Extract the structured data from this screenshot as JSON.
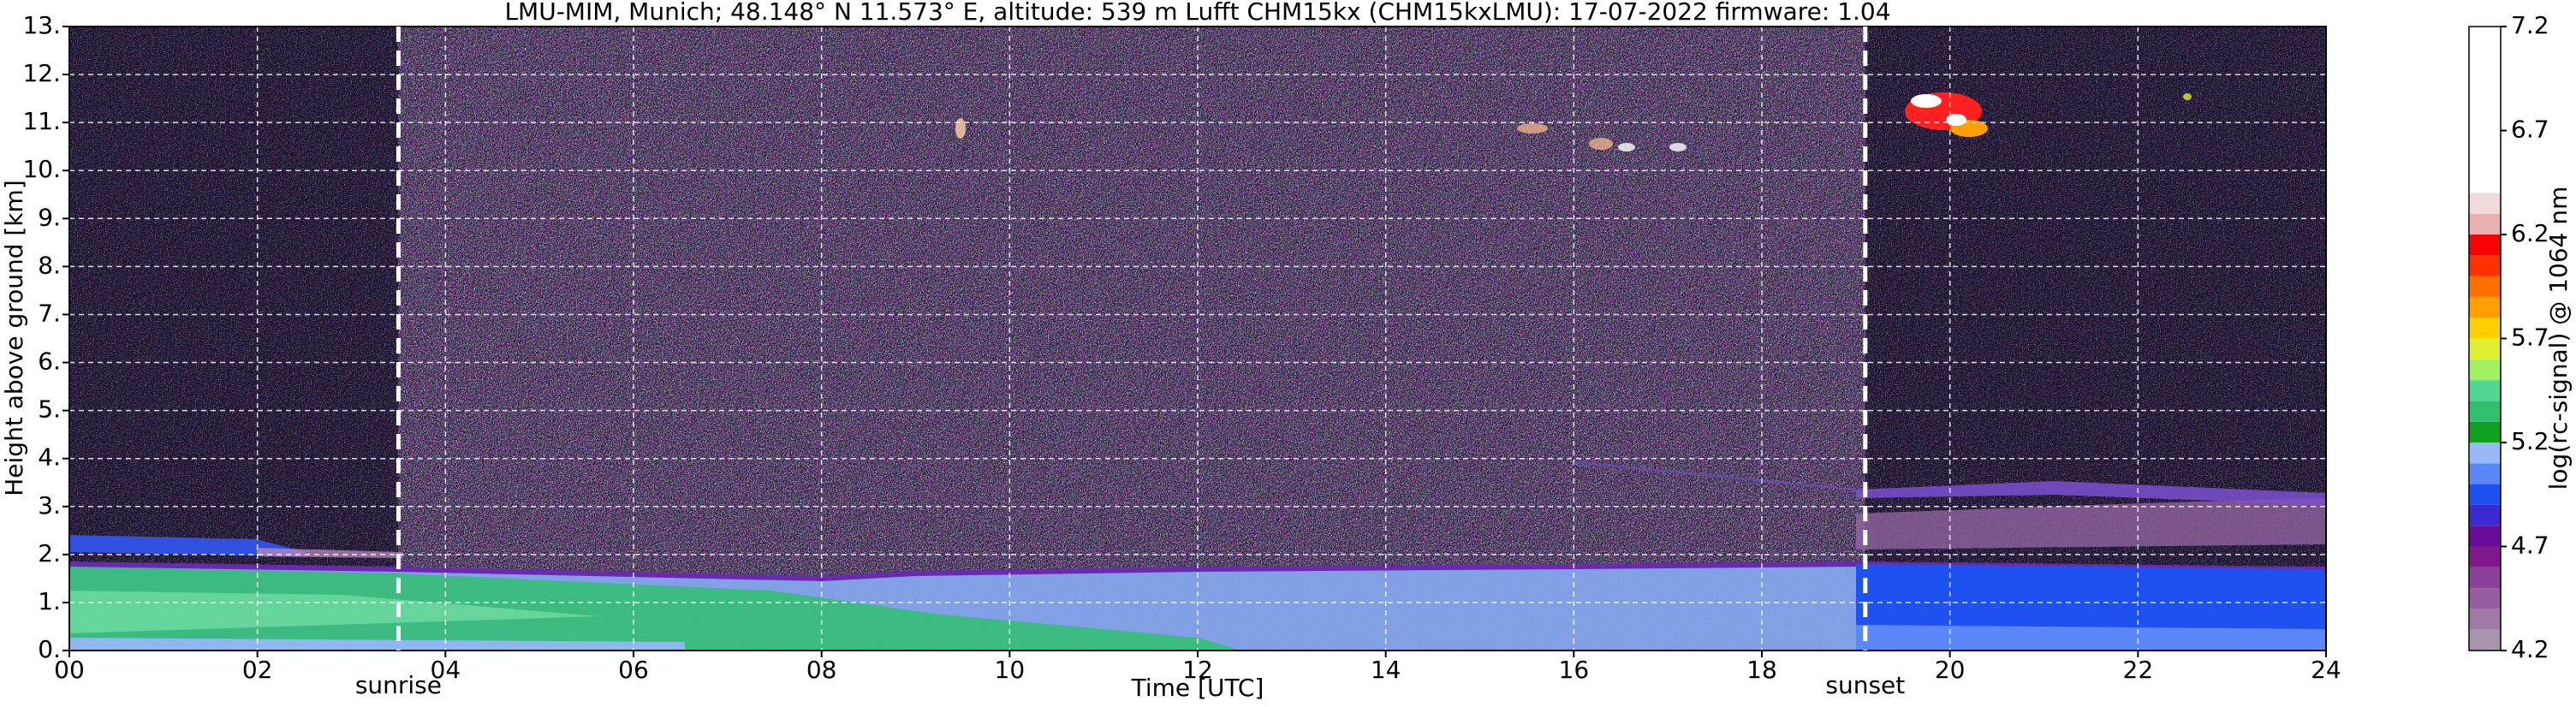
{
  "chart_data": {
    "type": "heatmap",
    "title": "LMU-MIM, Munich; 48.148° N 11.573° E, altitude: 539 m    Lufft CHM15kx (CHM15kxLMU): 17-07-2022    firmware: 1.04",
    "x_label": "Time [UTC]",
    "y_label": "Height above ground [km]",
    "xlim": [
      0,
      24
    ],
    "xticks": [
      {
        "value": 0,
        "label": "00"
      },
      {
        "value": 2,
        "label": "02"
      },
      {
        "value": 4,
        "label": "04"
      },
      {
        "value": 6,
        "label": "06"
      },
      {
        "value": 8,
        "label": "08"
      },
      10,
      12,
      14,
      16,
      18,
      20,
      22,
      24
    ],
    "ylim": [
      0,
      13
    ],
    "yticks": [
      {
        "value": 0,
        "label": "0."
      },
      {
        "value": 1,
        "label": "1."
      },
      {
        "value": 2,
        "label": "2."
      },
      {
        "value": 3,
        "label": "3."
      },
      {
        "value": 4,
        "label": "4."
      },
      {
        "value": 5,
        "label": "5."
      },
      {
        "value": 6,
        "label": "6."
      },
      {
        "value": 7,
        "label": "7."
      },
      {
        "value": 8,
        "label": "8."
      },
      {
        "value": 9,
        "label": "9."
      },
      {
        "value": 10,
        "label": "10."
      },
      {
        "value": 11,
        "label": "11."
      },
      {
        "value": 12,
        "label": "12."
      },
      {
        "value": 13,
        "label": "13."
      }
    ],
    "grid": true,
    "annotations": [
      {
        "text": "sunrise",
        "x": 3.5
      },
      {
        "text": "sunset",
        "x": 19.1
      }
    ],
    "colorbar": {
      "label": "log(rc-signal) @ 1064 nm",
      "lim": [
        4.2,
        7.2
      ],
      "ticks": [
        4.2,
        4.7,
        5.2,
        5.7,
        6.2,
        6.7,
        7.2
      ],
      "levels": [
        4.2,
        4.3,
        4.4,
        4.5,
        4.6,
        4.7,
        4.8,
        4.9,
        5.0,
        5.1,
        5.2,
        5.3,
        5.4,
        5.5,
        5.6,
        5.7,
        5.8,
        5.9,
        6.0,
        6.1,
        6.2,
        6.3,
        6.4,
        7.2
      ],
      "colors": [
        "#a895ab",
        "#a07aa5",
        "#955d9f",
        "#8a3f99",
        "#7e1a8c",
        "#6a0a9a",
        "#3a2ad0",
        "#1f50f0",
        "#5a88f8",
        "#98b8f8",
        "#10a020",
        "#30c070",
        "#50d890",
        "#a0f060",
        "#e0f030",
        "#ffd000",
        "#ffa000",
        "#ff7000",
        "#ff3000",
        "#ff0000",
        "#e8b0b0",
        "#f0dada",
        "#ffffff"
      ]
    }
  }
}
